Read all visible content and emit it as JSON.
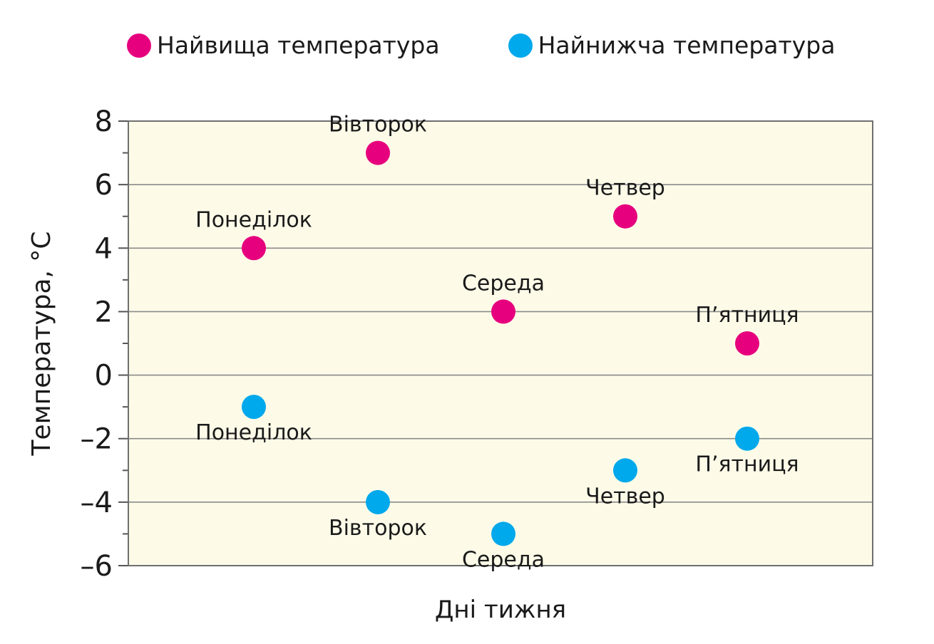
{
  "chart_data": {
    "type": "scatter",
    "title": "",
    "xlabel": "Дні тижня",
    "ylabel": "Температура, °C",
    "ylim": [
      -6,
      8
    ],
    "yticks": [
      8,
      6,
      4,
      2,
      0,
      -2,
      -4,
      -6
    ],
    "ytick_labels": [
      "8",
      "6",
      "4",
      "2",
      "0",
      "–2",
      "–4",
      "–6"
    ],
    "grid": true,
    "legend_position": "top",
    "categories": [
      "Понеділок",
      "Вівторок",
      "Середа",
      "Четвер",
      "П’ятниця"
    ],
    "series": [
      {
        "name": "Найвища температура",
        "color": "#e6007e",
        "label_position": "above",
        "values": [
          4,
          7,
          2,
          5,
          1
        ]
      },
      {
        "name": "Найнижча температура",
        "color": "#00a8ec",
        "label_position": "below",
        "values": [
          -1,
          -4,
          -5,
          -3,
          -2
        ]
      }
    ]
  },
  "colors": {
    "plot_background": "#fdfbe8",
    "grid": "#8a8a8a"
  }
}
